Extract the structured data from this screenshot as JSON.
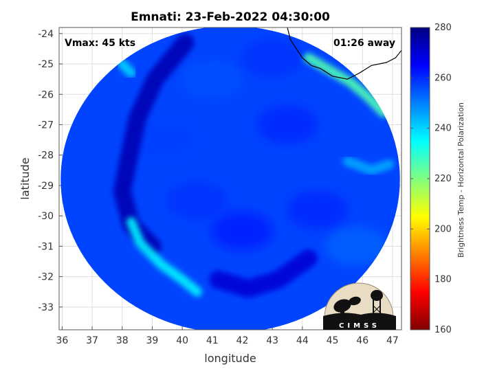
{
  "chart_data": {
    "type": "heatmap",
    "title": "Emnati: 23-Feb-2022 04:30:00",
    "xlabel": "longitude",
    "ylabel": "latitude",
    "xlim": [
      35.9,
      47.3
    ],
    "ylim": [
      -33.75,
      -23.8
    ],
    "xticks": [
      36,
      37,
      38,
      39,
      40,
      41,
      42,
      43,
      44,
      45,
      46,
      47
    ],
    "yticks": [
      -24,
      -25,
      -26,
      -27,
      -28,
      -29,
      -30,
      -31,
      -32,
      -33
    ],
    "grid": true,
    "annotations": {
      "top_left": "Vmax: 45 kts",
      "top_right": "01:26 away"
    },
    "colorbar": {
      "label": "Brightness Temp - Horizontal Polarization",
      "range": [
        160,
        280
      ],
      "ticks": [
        280,
        260,
        240,
        220,
        200,
        180,
        160
      ],
      "colormap": [
        "#800000",
        "#ff0000",
        "#ff8000",
        "#ffff00",
        "#80ff80",
        "#00ffff",
        "#0080ff",
        "#0000ff",
        "#000080"
      ]
    },
    "swath": {
      "center_lon": 41.6,
      "center_lat": -28.8,
      "lon_radius": 5.65,
      "lat_radius": 5.05,
      "background_value": 257
    },
    "features": [
      {
        "name": "cold band west",
        "value": 274,
        "points": [
          [
            40.1,
            -24.3
          ],
          [
            39.1,
            -25.5
          ],
          [
            38.5,
            -26.8
          ],
          [
            38.2,
            -28.2
          ],
          [
            38.0,
            -29.2
          ],
          [
            38.3,
            -30.3
          ],
          [
            39.0,
            -31.0
          ]
        ]
      },
      {
        "name": "warm streak southwest",
        "value": 236,
        "points": [
          [
            38.3,
            -30.2
          ],
          [
            38.6,
            -30.9
          ],
          [
            39.3,
            -31.6
          ],
          [
            40.0,
            -32.1
          ],
          [
            40.5,
            -32.5
          ]
        ]
      },
      {
        "name": "warm band northeast coast",
        "value": 226,
        "points": [
          [
            44.2,
            -24.8
          ],
          [
            44.9,
            -25.2
          ],
          [
            45.6,
            -25.6
          ],
          [
            46.2,
            -26.1
          ],
          [
            46.7,
            -26.6
          ]
        ]
      },
      {
        "name": "cold patch south",
        "value": 270,
        "points": [
          [
            41.2,
            -32.1
          ],
          [
            42.2,
            -32.4
          ],
          [
            43.2,
            -32.1
          ],
          [
            44.2,
            -31.4
          ]
        ]
      },
      {
        "name": "warm edge west",
        "value": 240,
        "points": [
          [
            38.0,
            -25.0
          ],
          [
            38.3,
            -25.3
          ]
        ]
      },
      {
        "name": "light band east",
        "value": 245,
        "points": [
          [
            45.5,
            -28.2
          ],
          [
            46.3,
            -28.5
          ],
          [
            46.9,
            -28.3
          ]
        ]
      }
    ],
    "coastline": [
      [
        43.5,
        -23.8
      ],
      [
        43.6,
        -24.2
      ],
      [
        43.8,
        -24.5
      ],
      [
        44.0,
        -24.8
      ],
      [
        44.3,
        -25.05
      ],
      [
        44.6,
        -25.15
      ],
      [
        45.0,
        -25.4
      ],
      [
        45.5,
        -25.5
      ],
      [
        45.9,
        -25.3
      ],
      [
        46.3,
        -25.05
      ],
      [
        46.8,
        -24.95
      ],
      [
        47.1,
        -24.8
      ],
      [
        47.3,
        -24.55
      ]
    ]
  },
  "logo": {
    "text": "CIMSS"
  }
}
